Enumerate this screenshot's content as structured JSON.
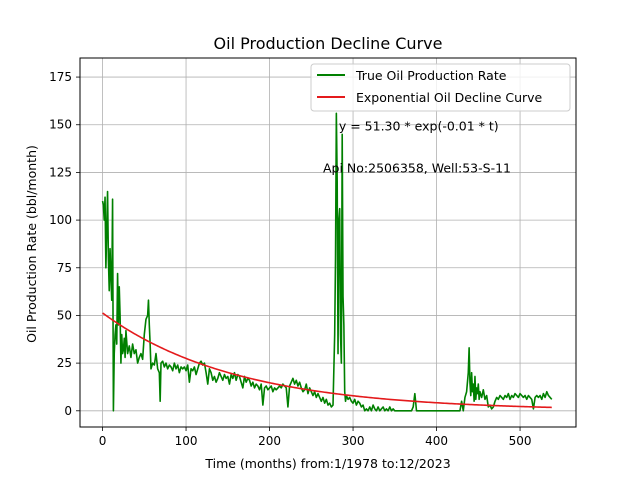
{
  "chart_data": {
    "type": "line",
    "title": "Oil Production Decline Curve",
    "xlabel": "Time (months) from:1/1978 to:12/2023",
    "ylabel": "Oil Production Rate (bbl/month)",
    "xlim": [
      -27,
      567
    ],
    "ylim": [
      -8.5,
      185
    ],
    "xticks": [
      0,
      100,
      200,
      300,
      400,
      500
    ],
    "yticks": [
      0,
      25,
      50,
      75,
      100,
      125,
      150,
      175
    ],
    "grid": true,
    "legend_position": "top-right",
    "annotations": [
      {
        "text": "y = 51.30 * exp(-0.01 * t)",
        "x": 283,
        "y": 147
      },
      {
        "text": "Api No:2506358, Well:53-S-11",
        "x": 264,
        "y": 125
      }
    ],
    "series": [
      {
        "name": "True Oil Production Rate",
        "color": "#008000",
        "points": [
          [
            0,
            110
          ],
          [
            1,
            108
          ],
          [
            2,
            100
          ],
          [
            3,
            112
          ],
          [
            4,
            75
          ],
          [
            5,
            95
          ],
          [
            6,
            115
          ],
          [
            7,
            80
          ],
          [
            8,
            63
          ],
          [
            9,
            85
          ],
          [
            10,
            70
          ],
          [
            11,
            58
          ],
          [
            12,
            111
          ],
          [
            13,
            0
          ],
          [
            14,
            30
          ],
          [
            15,
            40
          ],
          [
            16,
            45
          ],
          [
            17,
            35
          ],
          [
            18,
            72
          ],
          [
            19,
            45
          ],
          [
            20,
            65
          ],
          [
            21,
            50
          ],
          [
            22,
            25
          ],
          [
            23,
            40
          ],
          [
            24,
            30
          ],
          [
            25,
            32
          ],
          [
            26,
            38
          ],
          [
            27,
            28
          ],
          [
            28,
            42
          ],
          [
            29,
            36
          ],
          [
            30,
            30
          ],
          [
            32,
            34
          ],
          [
            34,
            28
          ],
          [
            36,
            35
          ],
          [
            38,
            30
          ],
          [
            40,
            32
          ],
          [
            42,
            25
          ],
          [
            44,
            28
          ],
          [
            46,
            30
          ],
          [
            48,
            27
          ],
          [
            50,
            40
          ],
          [
            52,
            48
          ],
          [
            54,
            50
          ],
          [
            55,
            58
          ],
          [
            56,
            45
          ],
          [
            57,
            35
          ],
          [
            58,
            22
          ],
          [
            60,
            25
          ],
          [
            62,
            24
          ],
          [
            64,
            30
          ],
          [
            66,
            22
          ],
          [
            68,
            20
          ],
          [
            69,
            5
          ],
          [
            70,
            25
          ],
          [
            72,
            26
          ],
          [
            74,
            23
          ],
          [
            76,
            25
          ],
          [
            78,
            22
          ],
          [
            80,
            24
          ],
          [
            82,
            23
          ],
          [
            84,
            21
          ],
          [
            86,
            25
          ],
          [
            88,
            22
          ],
          [
            90,
            24
          ],
          [
            92,
            20
          ],
          [
            94,
            23
          ],
          [
            96,
            22
          ],
          [
            98,
            23
          ],
          [
            100,
            21
          ],
          [
            102,
            24
          ],
          [
            104,
            15
          ],
          [
            106,
            22
          ],
          [
            108,
            21
          ],
          [
            110,
            23
          ],
          [
            112,
            19
          ],
          [
            114,
            22
          ],
          [
            116,
            25
          ],
          [
            118,
            26
          ],
          [
            120,
            24
          ],
          [
            122,
            25
          ],
          [
            124,
            20
          ],
          [
            126,
            14
          ],
          [
            128,
            22
          ],
          [
            130,
            20
          ],
          [
            132,
            16
          ],
          [
            134,
            18
          ],
          [
            136,
            15
          ],
          [
            138,
            17
          ],
          [
            140,
            20
          ],
          [
            142,
            18
          ],
          [
            144,
            16
          ],
          [
            146,
            19
          ],
          [
            148,
            17
          ],
          [
            150,
            18
          ],
          [
            152,
            14
          ],
          [
            154,
            19
          ],
          [
            156,
            17
          ],
          [
            158,
            20
          ],
          [
            160,
            16
          ],
          [
            162,
            19
          ],
          [
            164,
            18
          ],
          [
            166,
            15
          ],
          [
            168,
            12
          ],
          [
            170,
            18
          ],
          [
            172,
            15
          ],
          [
            174,
            17
          ],
          [
            176,
            16
          ],
          [
            178,
            13
          ],
          [
            180,
            15
          ],
          [
            182,
            12
          ],
          [
            184,
            14
          ],
          [
            186,
            13
          ],
          [
            188,
            11
          ],
          [
            190,
            14
          ],
          [
            192,
            3
          ],
          [
            194,
            12
          ],
          [
            196,
            13
          ],
          [
            198,
            11
          ],
          [
            200,
            12
          ],
          [
            202,
            13
          ],
          [
            204,
            10
          ],
          [
            206,
            12
          ],
          [
            208,
            11
          ],
          [
            210,
            12
          ],
          [
            212,
            13
          ],
          [
            214,
            12
          ],
          [
            216,
            14
          ],
          [
            218,
            13
          ],
          [
            220,
            12
          ],
          [
            222,
            2
          ],
          [
            224,
            13
          ],
          [
            226,
            15
          ],
          [
            228,
            17
          ],
          [
            230,
            14
          ],
          [
            232,
            16
          ],
          [
            234,
            13
          ],
          [
            236,
            15
          ],
          [
            238,
            12
          ],
          [
            240,
            10
          ],
          [
            242,
            11
          ],
          [
            244,
            14
          ],
          [
            246,
            9
          ],
          [
            248,
            12
          ],
          [
            250,
            10
          ],
          [
            252,
            8
          ],
          [
            254,
            10
          ],
          [
            256,
            7
          ],
          [
            258,
            9
          ],
          [
            260,
            7
          ],
          [
            262,
            5
          ],
          [
            264,
            7
          ],
          [
            266,
            4
          ],
          [
            268,
            6
          ],
          [
            270,
            3
          ],
          [
            272,
            4
          ],
          [
            274,
            2
          ],
          [
            276,
            3
          ],
          [
            278,
            40
          ],
          [
            279,
            80
          ],
          [
            280,
            156
          ],
          [
            281,
            120
          ],
          [
            282,
            30
          ],
          [
            283,
            100
          ],
          [
            284,
            106
          ],
          [
            285,
            40
          ],
          [
            286,
            25
          ],
          [
            287,
            145
          ],
          [
            288,
            60
          ],
          [
            289,
            45
          ],
          [
            290,
            10
          ],
          [
            291,
            5
          ],
          [
            292,
            8
          ],
          [
            294,
            6
          ],
          [
            296,
            7
          ],
          [
            298,
            5
          ],
          [
            300,
            4
          ],
          [
            302,
            6
          ],
          [
            304,
            3
          ],
          [
            306,
            5
          ],
          [
            308,
            4
          ],
          [
            310,
            2
          ],
          [
            312,
            3
          ],
          [
            314,
            0
          ],
          [
            316,
            1
          ],
          [
            318,
            0
          ],
          [
            320,
            2
          ],
          [
            322,
            0
          ],
          [
            324,
            3
          ],
          [
            326,
            1
          ],
          [
            328,
            0
          ],
          [
            330,
            2
          ],
          [
            332,
            0
          ],
          [
            334,
            1
          ],
          [
            336,
            2
          ],
          [
            338,
            0
          ],
          [
            340,
            1
          ],
          [
            342,
            0
          ],
          [
            344,
            2
          ],
          [
            346,
            0
          ],
          [
            348,
            1
          ],
          [
            350,
            0
          ],
          [
            360,
            0
          ],
          [
            370,
            0
          ],
          [
            372,
            2
          ],
          [
            374,
            9
          ],
          [
            376,
            0
          ],
          [
            380,
            0
          ],
          [
            390,
            0
          ],
          [
            400,
            0
          ],
          [
            410,
            0
          ],
          [
            420,
            0
          ],
          [
            428,
            0
          ],
          [
            430,
            5
          ],
          [
            432,
            0
          ],
          [
            434,
            7
          ],
          [
            436,
            10
          ],
          [
            437,
            15
          ],
          [
            438,
            20
          ],
          [
            439,
            33
          ],
          [
            440,
            15
          ],
          [
            441,
            8
          ],
          [
            442,
            20
          ],
          [
            443,
            10
          ],
          [
            444,
            14
          ],
          [
            445,
            5
          ],
          [
            446,
            18
          ],
          [
            447,
            6
          ],
          [
            448,
            12
          ],
          [
            449,
            9
          ],
          [
            450,
            14
          ],
          [
            451,
            6
          ],
          [
            452,
            10
          ],
          [
            454,
            7
          ],
          [
            456,
            11
          ],
          [
            458,
            6
          ],
          [
            460,
            8
          ],
          [
            462,
            2
          ],
          [
            464,
            3
          ],
          [
            466,
            1
          ],
          [
            468,
            2
          ],
          [
            470,
            5
          ],
          [
            472,
            7
          ],
          [
            474,
            6
          ],
          [
            476,
            8
          ],
          [
            478,
            7
          ],
          [
            480,
            6
          ],
          [
            482,
            8
          ],
          [
            484,
            7
          ],
          [
            486,
            9
          ],
          [
            488,
            6
          ],
          [
            490,
            8
          ],
          [
            492,
            7
          ],
          [
            494,
            9
          ],
          [
            496,
            8
          ],
          [
            498,
            7
          ],
          [
            500,
            9
          ],
          [
            502,
            8
          ],
          [
            504,
            7
          ],
          [
            506,
            8
          ],
          [
            508,
            6
          ],
          [
            510,
            8
          ],
          [
            512,
            7
          ],
          [
            514,
            6
          ],
          [
            516,
            1
          ],
          [
            518,
            7
          ],
          [
            520,
            8
          ],
          [
            522,
            7
          ],
          [
            524,
            8
          ],
          [
            526,
            6
          ],
          [
            528,
            9
          ],
          [
            530,
            7
          ],
          [
            532,
            10
          ],
          [
            534,
            8
          ],
          [
            536,
            7
          ],
          [
            538,
            6
          ]
        ]
      },
      {
        "name": "Exponential Oil Decline Curve",
        "color": "#e41a1c",
        "model": {
          "a": 51.3,
          "b": 0.00625,
          "t_start": 0,
          "t_end": 538
        }
      }
    ]
  }
}
